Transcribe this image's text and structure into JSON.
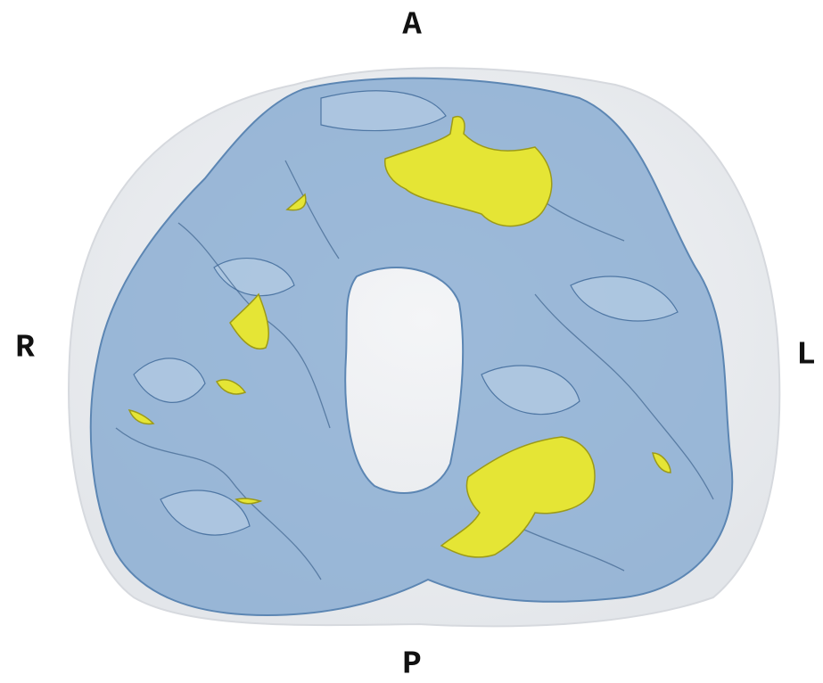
{
  "orientation": {
    "anterior": "A",
    "posterior": "P",
    "right": "R",
    "left": "L"
  }
}
